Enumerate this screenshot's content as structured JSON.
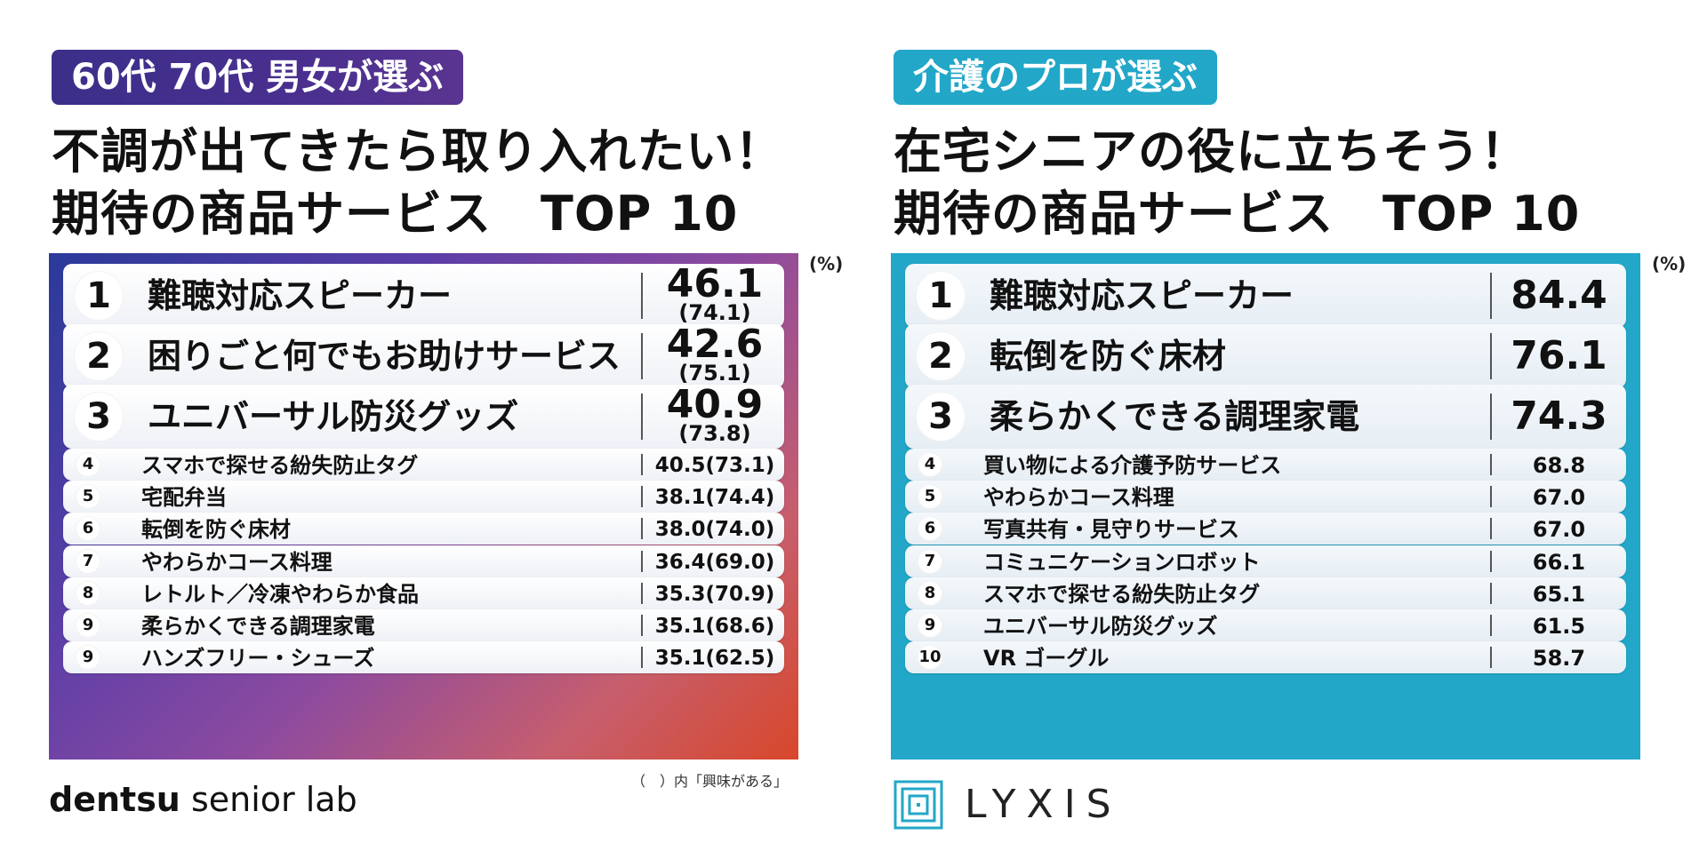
{
  "left": {
    "tag": "60代 70代 男女が選ぶ",
    "headline1": "不調が出てきたら取り入れたい！",
    "headline2": "期待の商品サービス　TOP 10",
    "unit": "(%)",
    "note": "（　）内「興味がある」",
    "logo": {
      "bold": "dentsu",
      "light": " senior lab"
    },
    "colors": {
      "tag": "#3b2f8a",
      "board_start": "#2a3a9a",
      "board_end": "#d8472a"
    }
  },
  "right": {
    "tag": "介護のプロが選ぶ",
    "headline1": "在宅シニアの役に立ちそう！",
    "headline2": "期待の商品サービス　TOP 10",
    "unit": "(%)",
    "logo": "LYXIS",
    "colors": {
      "tag": "#22a7c8",
      "board": "#22a7c8"
    }
  },
  "chart_data": [
    {
      "type": "table",
      "title": "不調が出てきたら取り入れたい！期待の商品サービス　TOP 10",
      "subtitle": "60代 70代 男女が選ぶ",
      "unit": "(%)",
      "rows": [
        {
          "rank": "1",
          "label": "難聴対応スピーカー",
          "value": "46.1",
          "interest": "(74.1)"
        },
        {
          "rank": "2",
          "label": "困りごと何でもお助けサービス",
          "value": "42.6",
          "interest": "(75.1)"
        },
        {
          "rank": "3",
          "label": "ユニバーサル防災グッズ",
          "value": "40.9",
          "interest": "(73.8)"
        },
        {
          "rank": "4",
          "label": "スマホで探せる紛失防止タグ",
          "value": "40.5",
          "interest": "(73.1)"
        },
        {
          "rank": "5",
          "label": "宅配弁当",
          "value": "38.1",
          "interest": "(74.4)"
        },
        {
          "rank": "6",
          "label": "転倒を防ぐ床材",
          "value": "38.0",
          "interest": "(74.0)"
        },
        {
          "rank": "7",
          "label": "やわらかコース料理",
          "value": "36.4",
          "interest": "(69.0)"
        },
        {
          "rank": "8",
          "label": "レトルト／冷凍やわらか食品",
          "value": "35.3",
          "interest": "(70.9)"
        },
        {
          "rank": "9",
          "label": "柔らかくできる調理家電",
          "value": "35.1",
          "interest": "(68.6)"
        },
        {
          "rank": "9",
          "label": "ハンズフリー・シューズ",
          "value": "35.1",
          "interest": "(62.5)"
        }
      ]
    },
    {
      "type": "table",
      "title": "在宅シニアの役に立ちそう！期待の商品サービス　TOP 10",
      "subtitle": "介護のプロが選ぶ",
      "unit": "(%)",
      "rows": [
        {
          "rank": "1",
          "label": "難聴対応スピーカー",
          "value": "84.4"
        },
        {
          "rank": "2",
          "label": "転倒を防ぐ床材",
          "value": "76.1"
        },
        {
          "rank": "3",
          "label": "柔らかくできる調理家電",
          "value": "74.3"
        },
        {
          "rank": "4",
          "label": "買い物による介護予防サービス",
          "value": "68.8"
        },
        {
          "rank": "5",
          "label": "やわらかコース料理",
          "value": "67.0"
        },
        {
          "rank": "6",
          "label": "写真共有・見守りサービス",
          "value": "67.0"
        },
        {
          "rank": "7",
          "label": "コミュニケーションロボット",
          "value": "66.1"
        },
        {
          "rank": "8",
          "label": "スマホで探せる紛失防止タグ",
          "value": "65.1"
        },
        {
          "rank": "9",
          "label": "ユニバーサル防災グッズ",
          "value": "61.5"
        },
        {
          "rank": "10",
          "label": "VR ゴーグル",
          "value": "58.7"
        }
      ]
    }
  ]
}
